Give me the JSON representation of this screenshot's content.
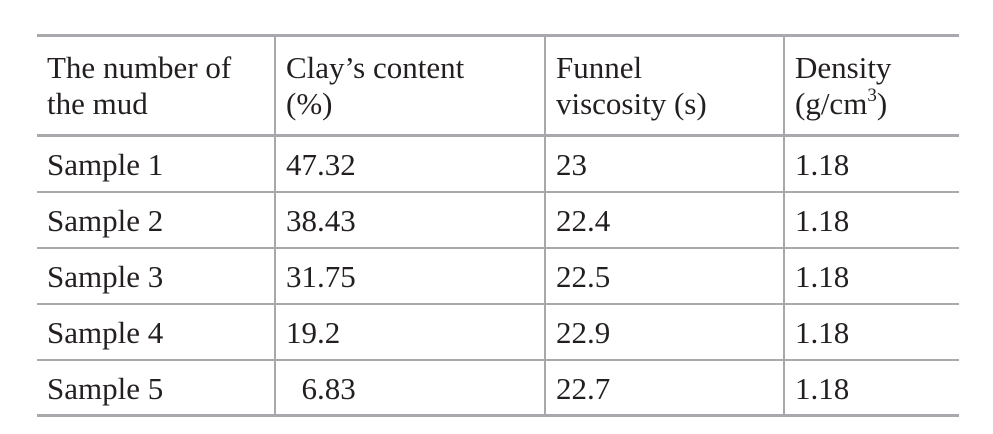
{
  "table": {
    "headers": [
      {
        "line1": "The number of",
        "line2": "the mud",
        "sup": "",
        "close": ""
      },
      {
        "line1": "Clay’s content",
        "line2": "(%)",
        "sup": "",
        "close": ""
      },
      {
        "line1": "Funnel",
        "line2": "viscosity (s)",
        "sup": "",
        "close": ""
      },
      {
        "line1": "Density",
        "line2": "(g/cm",
        "sup": "3",
        "close": ")"
      }
    ],
    "rows": [
      [
        "Sample 1",
        "47.32",
        "23",
        "1.18"
      ],
      [
        "Sample 2",
        "38.43",
        "22.4",
        "1.18"
      ],
      [
        "Sample 3",
        "31.75",
        "22.5",
        "1.18"
      ],
      [
        "Sample 4",
        "19.2",
        "22.9",
        "1.18"
      ],
      [
        "Sample 5",
        "  6.83",
        "22.7",
        "1.18"
      ]
    ]
  }
}
